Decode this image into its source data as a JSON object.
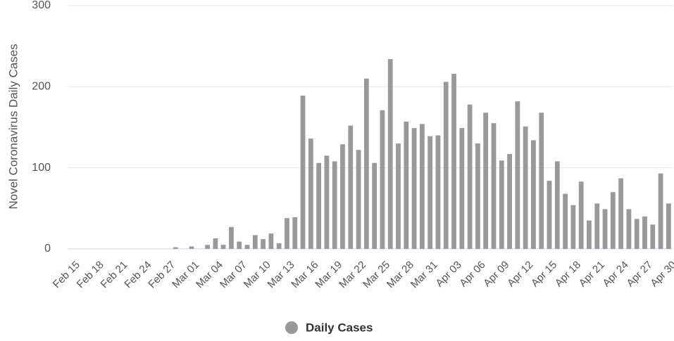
{
  "chart_data": {
    "type": "bar",
    "y_label": "Novel Coronavirus Daily Cases",
    "categories": [
      "Feb 15",
      null,
      null,
      "Feb 18",
      null,
      null,
      "Feb 21",
      null,
      null,
      "Feb 24",
      null,
      null,
      "Feb 27",
      null,
      null,
      "Mar 01",
      null,
      null,
      "Mar 04",
      null,
      null,
      "Mar 07",
      null,
      null,
      "Mar 10",
      null,
      null,
      "Mar 13",
      null,
      null,
      "Mar 16",
      null,
      null,
      "Mar 19",
      null,
      null,
      "Mar 22",
      null,
      null,
      "Mar 25",
      null,
      null,
      "Mar 28",
      null,
      null,
      "Mar 31",
      null,
      null,
      "Apr 03",
      null,
      null,
      "Apr 06",
      null,
      null,
      "Apr 09",
      null,
      null,
      "Apr 12",
      null,
      null,
      "Apr 15",
      null,
      null,
      "Apr 18",
      null,
      null,
      "Apr 21",
      null,
      null,
      "Apr 24",
      null,
      null,
      "Apr 27",
      null,
      null,
      "Apr 30"
    ],
    "series": [
      {
        "name": "Daily Cases",
        "color": "#999999",
        "values": [
          0,
          0,
          0,
          0,
          0,
          0,
          0,
          0,
          0,
          0,
          0,
          0,
          0,
          2,
          0,
          3,
          0,
          5,
          13,
          5,
          27,
          9,
          5,
          17,
          12,
          19,
          7,
          38,
          39,
          189,
          136,
          106,
          115,
          108,
          129,
          152,
          122,
          210,
          106,
          171,
          234,
          130,
          157,
          149,
          154,
          139,
          140,
          206,
          216,
          149,
          178,
          130,
          168,
          155,
          109,
          117,
          182,
          151,
          134,
          168,
          84,
          108,
          68,
          54,
          83,
          35,
          56,
          49,
          70,
          87,
          49,
          37,
          40,
          30,
          93,
          56
        ]
      }
    ],
    "ylim": [
      0,
      300
    ],
    "yticks": [
      0,
      100,
      200,
      300
    ],
    "grid": true
  }
}
